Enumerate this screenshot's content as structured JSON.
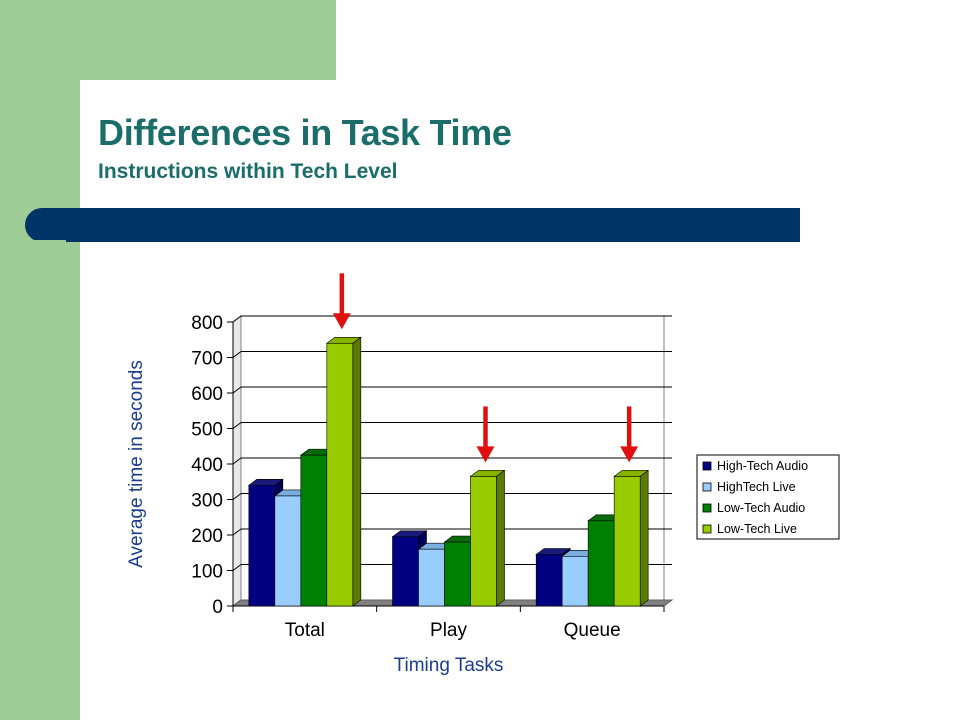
{
  "slide": {
    "title": "Differences in Task Time",
    "subtitle": "Instructions within Tech Level"
  },
  "colors": {
    "sidebar": "#9fcc96",
    "rule": "#003366",
    "title": "#1a6d69",
    "arrow": "#e01010"
  },
  "chart_data": {
    "type": "bar",
    "categories": [
      "Total",
      "Play",
      "Queue"
    ],
    "series": [
      {
        "name": "High-Tech Audio",
        "values": [
          340,
          195,
          145
        ],
        "color": "#000080",
        "top": "#1a1a7a",
        "side": "#000055"
      },
      {
        "name": "HighTech Live",
        "values": [
          310,
          160,
          140
        ],
        "color": "#99ccff",
        "top": "#7aaede",
        "side": "#5f8fbf"
      },
      {
        "name": "Low-Tech Audio",
        "values": [
          425,
          180,
          240
        ],
        "color": "#008000",
        "top": "#0a6a0a",
        "side": "#004d00"
      },
      {
        "name": "Low-Tech Live",
        "values": [
          740,
          365,
          365
        ],
        "color": "#99cc00",
        "top": "#86b300",
        "side": "#5c7a00"
      }
    ],
    "xlabel": "Timing Tasks",
    "ylabel": "Average time in seconds",
    "ylim": [
      0,
      800
    ],
    "yticks": [
      "0",
      "100",
      "200",
      "300",
      "400",
      "500",
      "600",
      "700",
      "800"
    ],
    "grid": true,
    "legend_position": "right",
    "annotations": [
      {
        "type": "arrow",
        "category": "Total",
        "target": "Low-Tech Live"
      },
      {
        "type": "arrow",
        "category": "Play",
        "target": "Low-Tech Live"
      },
      {
        "type": "arrow",
        "category": "Queue",
        "target": "Low-Tech Live"
      }
    ]
  }
}
